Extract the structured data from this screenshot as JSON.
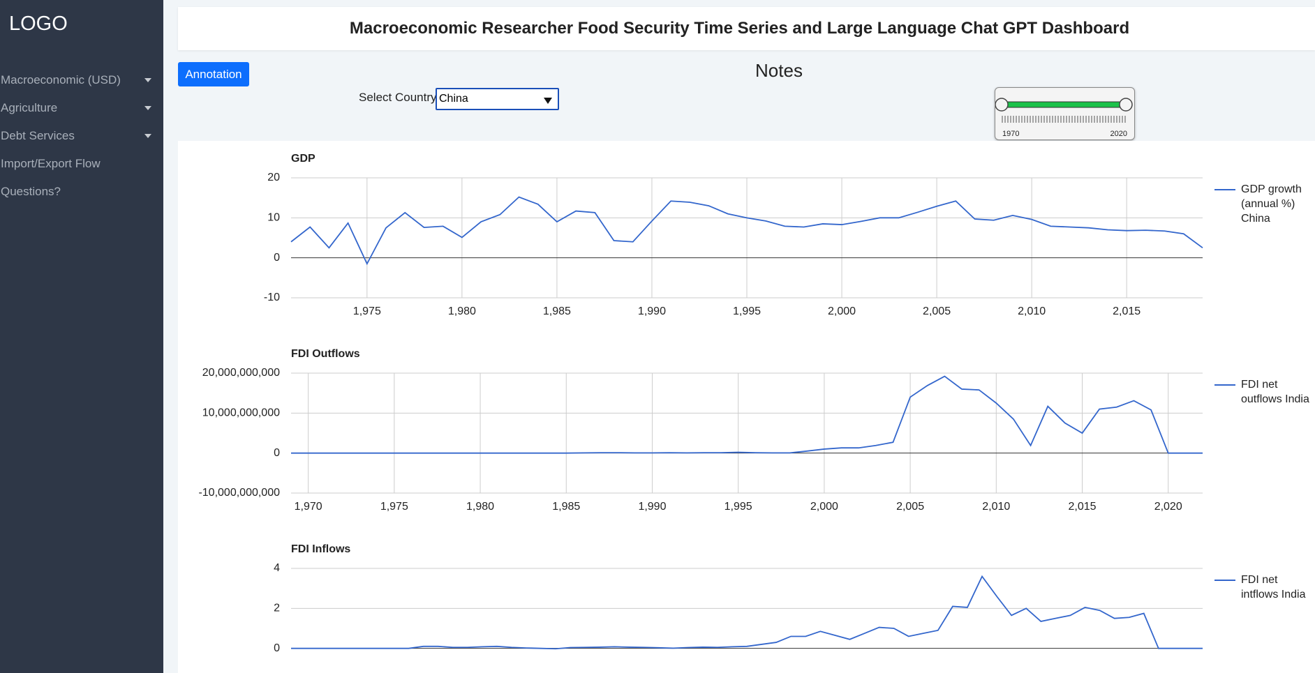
{
  "sidebar": {
    "logo": "LOGO",
    "menu": [
      "Macroeconomic (USD)",
      "Agriculture",
      "Debt Services",
      "Import/Export Flow",
      "Questions?"
    ]
  },
  "header": {
    "title": "Macroeconomic Researcher Food Security Time Series and Large Language Chat GPT Dashboard"
  },
  "controls": {
    "annotation_button": "Annotation",
    "notes_title": "Notes",
    "country_label": "Select Country:",
    "country_value": "China",
    "slider_min_label": "1970",
    "slider_max_label": "2020"
  },
  "chart_data": [
    {
      "type": "line",
      "title": "GDP",
      "x": [
        1971,
        1972,
        1973,
        1974,
        1975,
        1976,
        1977,
        1978,
        1979,
        1980,
        1981,
        1982,
        1983,
        1984,
        1985,
        1986,
        1987,
        1988,
        1989,
        1990,
        1991,
        1992,
        1993,
        1994,
        1995,
        1996,
        1997,
        1998,
        1999,
        2000,
        2001,
        2002,
        2003,
        2004,
        2005,
        2006,
        2007,
        2008,
        2009,
        2010,
        2011,
        2012,
        2013,
        2014,
        2015,
        2016,
        2017,
        2018,
        2019
      ],
      "series": [
        {
          "name": "GDP growth (annual %) China",
          "color": "#3366cc",
          "values": [
            4.0,
            7.7,
            2.5,
            8.7,
            -1.5,
            7.5,
            11.3,
            7.6,
            7.9,
            5.1,
            9.0,
            10.8,
            15.2,
            13.4,
            9.0,
            11.7,
            11.3,
            4.3,
            4.0,
            9.2,
            14.2,
            13.9,
            13.0,
            11.0,
            10.0,
            9.2,
            7.9,
            7.7,
            8.5,
            8.3,
            9.1,
            10.0,
            10.0,
            11.4,
            12.9,
            14.2,
            9.7,
            9.4,
            10.6,
            9.6,
            7.9,
            7.7,
            7.5,
            7.0,
            6.8,
            6.9,
            6.7,
            6.0,
            2.5
          ]
        }
      ],
      "xlim": [
        1971,
        2019
      ],
      "xticks": [
        {
          "value": 1975,
          "label": "1,975"
        },
        {
          "value": 1980,
          "label": "1,980"
        },
        {
          "value": 1985,
          "label": "1,985"
        },
        {
          "value": 1990,
          "label": "1,990"
        },
        {
          "value": 1995,
          "label": "1,995"
        },
        {
          "value": 2000,
          "label": "2,000"
        },
        {
          "value": 2005,
          "label": "2,005"
        },
        {
          "value": 2010,
          "label": "2,010"
        },
        {
          "value": 2015,
          "label": "2,015"
        }
      ],
      "ylim": [
        -10,
        20
      ],
      "yticks": [
        -10,
        0,
        10,
        20
      ],
      "grid": true,
      "legend": "right"
    },
    {
      "type": "line",
      "title": "FDI Outflows",
      "x": [
        1969,
        1970,
        1971,
        1972,
        1973,
        1974,
        1975,
        1976,
        1977,
        1978,
        1979,
        1980,
        1981,
        1982,
        1983,
        1984,
        1985,
        1986,
        1987,
        1988,
        1989,
        1990,
        1991,
        1992,
        1993,
        1994,
        1995,
        1996,
        1997,
        1998,
        1999,
        2000,
        2001,
        2002,
        2003,
        2004,
        2005,
        2006,
        2007,
        2008,
        2009,
        2010,
        2011,
        2012,
        2013,
        2014,
        2015,
        2016,
        2017,
        2018,
        2019,
        2020,
        2021,
        2022
      ],
      "series": [
        {
          "name": "FDI net outflows India",
          "color": "#3366cc",
          "values": [
            0,
            0,
            0,
            0,
            0,
            0,
            0,
            0,
            0,
            0,
            0,
            0,
            0,
            0,
            0,
            0,
            0,
            50000000,
            100000000,
            100000000,
            50000000,
            50000000,
            100000000,
            50000000,
            100000000,
            100000000,
            200000000,
            100000000,
            50000000,
            50000000,
            500000000,
            1000000000,
            1300000000,
            1300000000,
            1900000000,
            2700000000,
            14000000000,
            16900000000,
            19200000000,
            16000000000,
            15800000000,
            12500000000,
            8500000000,
            1900000000,
            11700000000,
            7500000000,
            5000000000,
            11000000000,
            11500000000,
            13100000000,
            10800000000,
            0,
            0,
            0
          ]
        }
      ],
      "xlim": [
        1969,
        2022
      ],
      "xticks": [
        {
          "value": 1970,
          "label": "1,970"
        },
        {
          "value": 1975,
          "label": "1,975"
        },
        {
          "value": 1980,
          "label": "1,980"
        },
        {
          "value": 1985,
          "label": "1,985"
        },
        {
          "value": 1990,
          "label": "1,990"
        },
        {
          "value": 1995,
          "label": "1,995"
        },
        {
          "value": 2000,
          "label": "2,000"
        },
        {
          "value": 2005,
          "label": "2,005"
        },
        {
          "value": 2010,
          "label": "2,010"
        },
        {
          "value": 2015,
          "label": "2,015"
        },
        {
          "value": 2020,
          "label": "2,020"
        }
      ],
      "ylim": [
        -10000000000,
        20000000000
      ],
      "yticks": [
        {
          "value": -10000000000,
          "label": "-10,000,000,000"
        },
        0,
        {
          "value": 10000000000,
          "label": "10,000,000,000"
        },
        {
          "value": 20000000000,
          "label": "20,000,000,000"
        }
      ],
      "grid": true,
      "legend": "right"
    },
    {
      "type": "line",
      "title": "FDI Inflows",
      "x": [
        1960,
        1961,
        1962,
        1963,
        1964,
        1965,
        1966,
        1967,
        1968,
        1969,
        1970,
        1971,
        1972,
        1973,
        1974,
        1975,
        1976,
        1977,
        1978,
        1979,
        1980,
        1981,
        1982,
        1983,
        1984,
        1985,
        1986,
        1987,
        1988,
        1989,
        1990,
        1991,
        1992,
        1993,
        1994,
        1995,
        1996,
        1997,
        1998,
        1999,
        2000,
        2001,
        2002,
        2003,
        2004,
        2005,
        2006,
        2007,
        2008,
        2009,
        2010,
        2011,
        2012,
        2013,
        2014,
        2015,
        2016,
        2017,
        2018,
        2019,
        2020,
        2021,
        2022
      ],
      "series": [
        {
          "name": "FDI net intflows India",
          "color": "#3366cc",
          "values": [
            0,
            0,
            0,
            0,
            0,
            0,
            0,
            0,
            0,
            0.1,
            0.1,
            0.05,
            0.05,
            0.08,
            0.1,
            0.05,
            0.02,
            0,
            -0.02,
            0.04,
            0.05,
            0.06,
            0.08,
            0.06,
            0.05,
            0.03,
            0.01,
            0.04,
            0.06,
            0.05,
            0.08,
            0.1,
            0.2,
            0.3,
            0.6,
            0.6,
            0.85,
            0.65,
            0.45,
            0.75,
            1.05,
            1.0,
            0.6,
            0.75,
            0.9,
            2.1,
            2.05,
            3.6,
            2.6,
            1.65,
            2.0,
            1.35,
            1.5,
            1.65,
            2.05,
            1.9,
            1.5,
            1.55,
            1.75,
            0,
            0,
            0,
            0
          ]
        }
      ],
      "xlim": [
        1960,
        2022
      ],
      "ylim": [
        -2,
        4
      ],
      "yticks": [
        0,
        2,
        4
      ],
      "grid": true,
      "legend": "right"
    }
  ]
}
